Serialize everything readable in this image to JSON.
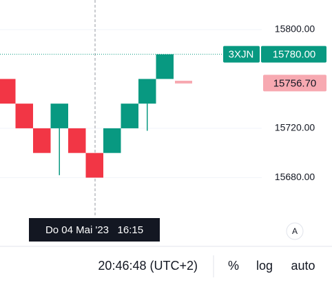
{
  "chart_data": {
    "type": "candlestick",
    "open": [
      15760,
      15740,
      15720,
      15720,
      15720,
      15700,
      15700,
      15720,
      15740,
      15760
    ],
    "close": [
      15740,
      15720,
      15700,
      15740,
      15700,
      15680,
      15720,
      15740,
      15760,
      15780
    ],
    "low": [
      15740,
      15720,
      15700,
      15682,
      15700,
      15680,
      15700,
      15720,
      15718,
      15760
    ],
    "up_color": "#089981",
    "down_color": "#f23645",
    "ylim": [
      15645,
      15824
    ],
    "yticks": [
      {
        "value": 15680,
        "label": "15680.00"
      },
      {
        "value": 15720,
        "label": "15720.00"
      },
      {
        "value": 15800,
        "label": "15800.00"
      }
    ],
    "grid": true,
    "symbol": "3XJN",
    "last_price": {
      "value": 15780,
      "label": "15780.00"
    },
    "mark_price": {
      "value": 15756.7,
      "label": "15756.70"
    },
    "crosshair_label": "Do 04 Mai '23   16:15"
  },
  "toolbar": {
    "auto_scale": "A",
    "clock": "20:46:48 (UTC+2)",
    "buttons": [
      "%",
      "log",
      "auto"
    ]
  }
}
